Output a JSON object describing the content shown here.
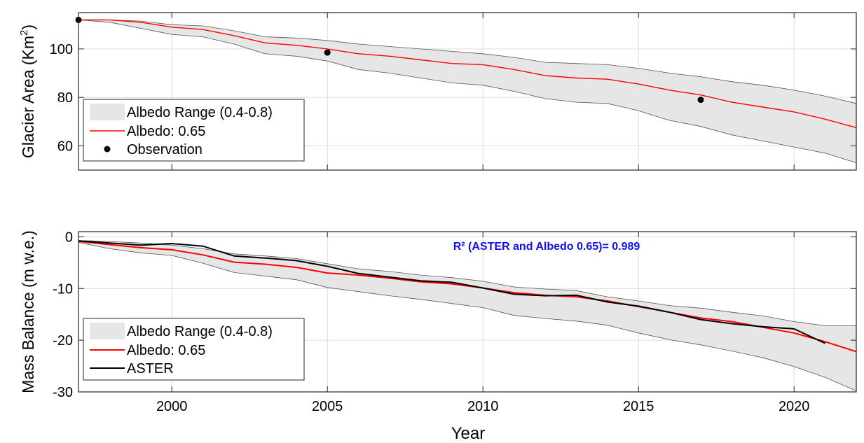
{
  "xlabel": "Year",
  "chart_data": [
    {
      "type": "line",
      "ylabel": "Glacier Area (Km",
      "ylabel_sup": "2",
      "ylabel_close": ")",
      "xlim": [
        1997,
        2022
      ],
      "ylim": [
        50,
        115
      ],
      "xticks": [
        2000,
        2005,
        2010,
        2015,
        2020
      ],
      "yticks": [
        60,
        80,
        100
      ],
      "grid": true,
      "legend_position": "bottom-left",
      "legend": [
        "Albedo Range (0.4-0.8)",
        "Albedo: 0.65",
        "Observation"
      ],
      "band": {
        "name": "Albedo Range (0.4-0.8)",
        "color": "#e6e6e6",
        "x": [
          1997,
          1998,
          1999,
          2000,
          2001,
          2002,
          2003,
          2004,
          2005,
          2006,
          2007,
          2008,
          2009,
          2010,
          2011,
          2012,
          2013,
          2014,
          2015,
          2016,
          2017,
          2018,
          2019,
          2020,
          2021,
          2022
        ],
        "upper": [
          112,
          112,
          111.5,
          110,
          109.5,
          107.5,
          105,
          104.5,
          103.5,
          102,
          101,
          100,
          99,
          98,
          96.5,
          94.5,
          94,
          93.5,
          92,
          90,
          88.5,
          86.5,
          85,
          83,
          80.5,
          77.5
        ],
        "lower": [
          112,
          111,
          108.5,
          106,
          105,
          102,
          98,
          97,
          95,
          91.5,
          90,
          88,
          86,
          85,
          82.5,
          79.5,
          78,
          77.5,
          74.5,
          70.5,
          68,
          64.5,
          62,
          59.5,
          57,
          53
        ]
      },
      "series": [
        {
          "name": "Albedo: 0.65",
          "color": "#ff0000",
          "x": [
            1997,
            1998,
            1999,
            2000,
            2001,
            2002,
            2003,
            2004,
            2005,
            2006,
            2007,
            2008,
            2009,
            2010,
            2011,
            2012,
            2013,
            2014,
            2015,
            2016,
            2017,
            2018,
            2019,
            2020,
            2021,
            2022
          ],
          "values": [
            112,
            112,
            111,
            109,
            108,
            105.5,
            102.5,
            101.5,
            100,
            98,
            97,
            95.5,
            94,
            93.5,
            91.5,
            89,
            88,
            87.5,
            85.5,
            83,
            81,
            78,
            76,
            74,
            71,
            67.5
          ]
        }
      ],
      "points": {
        "name": "Observation",
        "color": "#000000",
        "x": [
          1997,
          2005,
          2017
        ],
        "y": [
          112,
          98.5,
          79
        ]
      }
    },
    {
      "type": "line",
      "ylabel": "Mass Balance (m w.e.)",
      "xlim": [
        1997,
        2022
      ],
      "ylim": [
        -30,
        1
      ],
      "xticks": [
        2000,
        2005,
        2010,
        2015,
        2020
      ],
      "yticks": [
        -30,
        -20,
        -10,
        0
      ],
      "grid": true,
      "legend_position": "bottom-left",
      "legend": [
        "Albedo Range (0.4-0.8)",
        "Albedo: 0.65",
        "ASTER"
      ],
      "annotation": "R² (ASTER and Albedo 0.65)= 0.989",
      "annotation_color": "#1010ee",
      "band": {
        "name": "Albedo Range (0.4-0.8)",
        "color": "#e6e6e6",
        "x": [
          1997,
          1998,
          1999,
          2000,
          2001,
          2002,
          2003,
          2004,
          2005,
          2006,
          2007,
          2008,
          2009,
          2010,
          2011,
          2012,
          2013,
          2014,
          2015,
          2016,
          2017,
          2018,
          2019,
          2020,
          2021,
          2022
        ],
        "upper": [
          -0.7,
          -0.9,
          -1.2,
          -1.6,
          -2.3,
          -3.3,
          -3.7,
          -4.2,
          -5.2,
          -6.2,
          -6.7,
          -7.4,
          -7.9,
          -8.6,
          -9.7,
          -10.1,
          -10.4,
          -11.6,
          -12.4,
          -13.3,
          -13.8,
          -14.6,
          -15.3,
          -16.4,
          -17.2,
          -17.2
        ]
      },
      "band_lower": [
        -1.1,
        -2.3,
        -3.1,
        -3.6,
        -5.1,
        -6.9,
        -7.6,
        -8.3,
        -9.8,
        -10.6,
        -11.4,
        -12.1,
        -12.9,
        -13.7,
        -15.2,
        -15.8,
        -16.3,
        -17.1,
        -18.6,
        -19.9,
        -20.9,
        -22.1,
        -23.4,
        -25.1,
        -27.2,
        -29.8
      ],
      "series": [
        {
          "name": "Albedo: 0.65",
          "color": "#ff0000",
          "x": [
            1997,
            1998,
            1999,
            2000,
            2001,
            2002,
            2003,
            2004,
            2005,
            2006,
            2007,
            2008,
            2009,
            2010,
            2011,
            2012,
            2013,
            2014,
            2015,
            2016,
            2017,
            2018,
            2019,
            2020,
            2021,
            2022
          ],
          "values": [
            -0.9,
            -1.5,
            -2.1,
            -2.5,
            -3.5,
            -4.9,
            -5.3,
            -5.9,
            -7.0,
            -7.4,
            -8.0,
            -8.7,
            -9.1,
            -9.9,
            -10.8,
            -11.3,
            -11.6,
            -12.4,
            -13.5,
            -14.6,
            -15.7,
            -16.4,
            -17.5,
            -18.6,
            -20.3,
            -22.2
          ]
        },
        {
          "name": "ASTER",
          "color": "#000000",
          "x": [
            1997,
            1998,
            1999,
            2000,
            2001,
            2002,
            2003,
            2004,
            2005,
            2006,
            2007,
            2008,
            2009,
            2010,
            2011,
            2012,
            2013,
            2014,
            2015,
            2016,
            2017,
            2018,
            2019,
            2020,
            2021
          ],
          "values": [
            -0.8,
            -1.2,
            -1.6,
            -1.3,
            -1.8,
            -3.7,
            -4.1,
            -4.6,
            -5.7,
            -7.1,
            -7.8,
            -8.5,
            -8.8,
            -9.9,
            -11.1,
            -11.4,
            -11.3,
            -12.6,
            -13.4,
            -14.6,
            -16.0,
            -16.8,
            -17.4,
            -17.8,
            -20.6
          ]
        }
      ]
    }
  ]
}
